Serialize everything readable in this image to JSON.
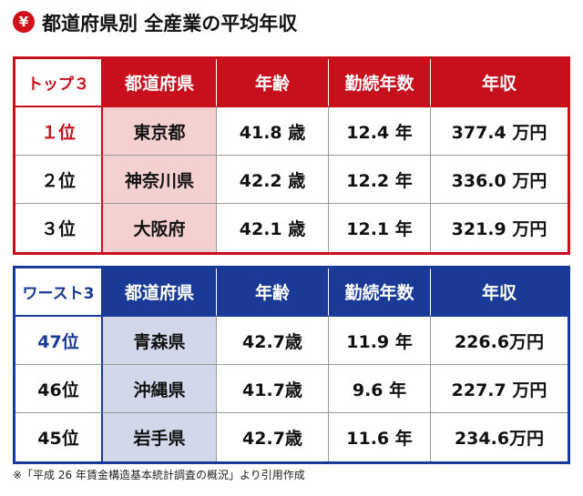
{
  "header": {
    "icon": "¥",
    "title": "都道府県別 全産業の平均年収"
  },
  "tables": [
    {
      "header": [
        "トップ３",
        "都道府県",
        "年齢",
        "勤続年数",
        "年収"
      ],
      "rows": [
        [
          "１位",
          "東京都",
          "41.8 歳",
          "12.4 年",
          "377.4 万円"
        ],
        [
          "２位",
          "神奈川県",
          "42.2 歳",
          "12.2 年",
          "336.0 万円"
        ],
        [
          "３位",
          "大阪府",
          "42.1 歳",
          "12.1 年",
          "321.9 万円"
        ]
      ]
    },
    {
      "header": [
        "ワースト3",
        "都道府県",
        "年齢",
        "勤続年数",
        "年収"
      ],
      "rows": [
        [
          "47位",
          "青森県",
          "42.7歳",
          "11.9 年",
          "226.6万円"
        ],
        [
          "46位",
          "沖縄県",
          "41.7歳",
          "9.6 年",
          "227.7 万円"
        ],
        [
          "45位",
          "岩手県",
          "42.7歳",
          "11.6 年",
          "234.6万円"
        ]
      ]
    }
  ],
  "footnote": "※「平成 26 年賃金構造基本統計調査の概況」より引用作成"
}
